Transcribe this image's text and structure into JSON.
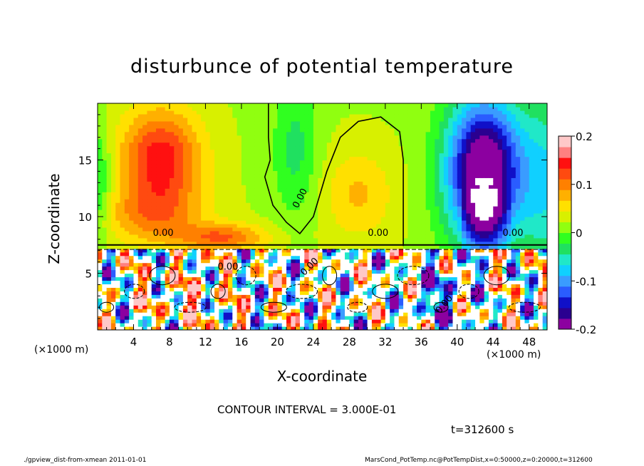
{
  "chart_data": {
    "type": "heatmap",
    "title": "disturbunce of potential temperature",
    "xlabel": "X-coordinate",
    "ylabel": "Z-coordinate",
    "x_unit_left": "(×1000 m)",
    "x_unit_right": "(×1000 m)",
    "xlim": [
      0,
      50
    ],
    "ylim": [
      0,
      20
    ],
    "x_ticks": [
      4,
      8,
      12,
      16,
      20,
      24,
      28,
      32,
      36,
      40,
      44,
      48
    ],
    "y_ticks": [
      5,
      10,
      15
    ],
    "colorbar": {
      "range": [
        -0.2,
        0.2
      ],
      "ticks": [
        "0.2",
        "0.1",
        "0",
        "-0.1",
        "-0.2"
      ],
      "tick_values": [
        0.2,
        0.1,
        0,
        -0.1,
        -0.2
      ],
      "colors": [
        "#8c00a0",
        "#2a0090",
        "#1010c8",
        "#2a5cff",
        "#3a9cff",
        "#10d0ff",
        "#20e8c8",
        "#20e060",
        "#30ff20",
        "#90ff10",
        "#d8f000",
        "#ffe000",
        "#ffb000",
        "#ff8000",
        "#ff4a10",
        "#ff1010",
        "#ff8080",
        "#ffc8c8"
      ]
    },
    "contour_labels": [
      "0.00",
      "0.00",
      "0.00",
      "0.00",
      "0.00",
      "0.00",
      "0.00"
    ],
    "contour_interval": "CONTOUR INTERVAL = 3.000E-01",
    "time": "t=312600 s",
    "colors": {
      "background": "#ffffff",
      "plot_default": "#40ff10"
    }
  },
  "footer": {
    "left": "./gpview_dist-from-xmean  2011-01-01",
    "right": "MarsCond_PotTemp.nc@PotTempDist,x=0:50000,z=0:20000,t=312600"
  }
}
